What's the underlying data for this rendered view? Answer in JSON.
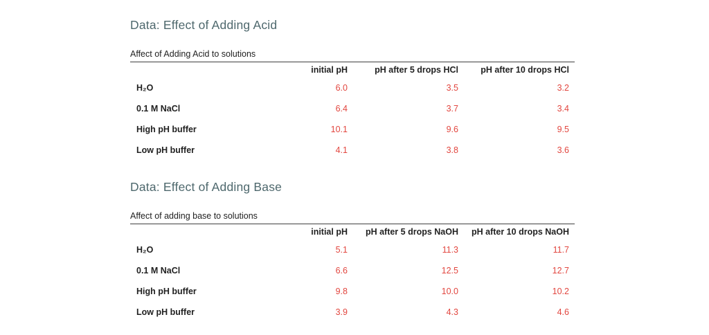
{
  "colors": {
    "section_title": "#4e686d",
    "value_text": "#e2463f",
    "body_text": "#212121",
    "rule": "#3f3f3f",
    "background": "#ffffff"
  },
  "sections": [
    {
      "title": "Data: Effect of Adding Acid",
      "table": {
        "caption": "Affect of Adding Acid to solutions",
        "columns": [
          "initial pH",
          "pH after 5 drops HCl",
          "pH after 10 drops HCl"
        ],
        "rows": [
          {
            "label": "H₂O",
            "values": [
              "6.0",
              "3.5",
              "3.2"
            ]
          },
          {
            "label": "0.1 M NaCl",
            "values": [
              "6.4",
              "3.7",
              "3.4"
            ]
          },
          {
            "label": "High pH buffer",
            "values": [
              "10.1",
              "9.6",
              "9.5"
            ]
          },
          {
            "label": "Low pH buffer",
            "values": [
              "4.1",
              "3.8",
              "3.6"
            ]
          }
        ]
      }
    },
    {
      "title": "Data: Effect of Adding Base",
      "table": {
        "caption": "Affect of adding base to solutions",
        "columns": [
          "initial pH",
          "pH after 5 drops NaOH",
          "pH after 10 drops NaOH"
        ],
        "rows": [
          {
            "label": "H₂O",
            "values": [
              "5.1",
              "11.3",
              "11.7"
            ]
          },
          {
            "label": "0.1 M NaCl",
            "values": [
              "6.6",
              "12.5",
              "12.7"
            ]
          },
          {
            "label": "High pH buffer",
            "values": [
              "9.8",
              "10.0",
              "10.2"
            ]
          },
          {
            "label": "Low pH buffer",
            "values": [
              "3.9",
              "4.3",
              "4.6"
            ]
          }
        ]
      }
    }
  ]
}
